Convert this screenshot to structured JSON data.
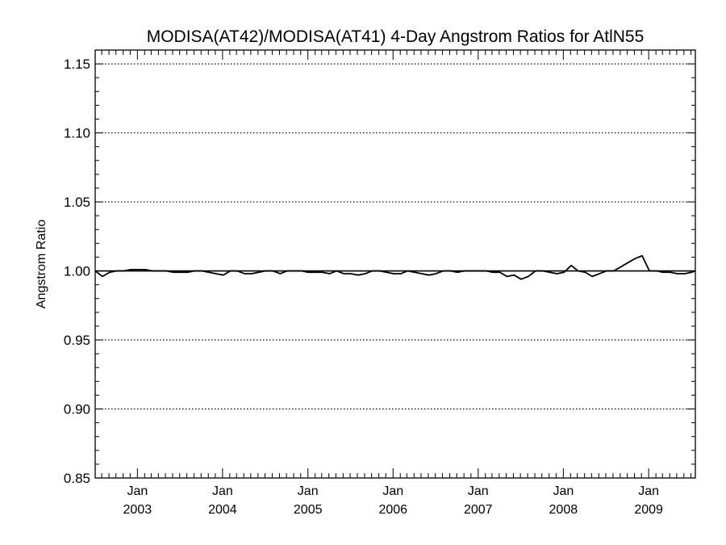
{
  "chart_data": {
    "type": "line",
    "title": "MODISA(AT42)/MODISA(AT41) 4-Day Angstrom Ratios for AtlN55",
    "xlabel": "",
    "ylabel": "Angstrom Ratio",
    "xlim": [
      "2002-07-04",
      "2009-07-20"
    ],
    "ylim": [
      0.85,
      1.16
    ],
    "y_ticks": [
      0.85,
      0.9,
      0.95,
      1.0,
      1.05,
      1.1,
      1.15
    ],
    "y_tick_labels": [
      "0.85",
      "0.90",
      "0.95",
      "1.00",
      "1.05",
      "1.10",
      "1.15"
    ],
    "x_ticks": [
      {
        "date": "2003-01-01",
        "month": "Jan",
        "year": "2003"
      },
      {
        "date": "2004-01-01",
        "month": "Jan",
        "year": "2004"
      },
      {
        "date": "2005-01-01",
        "month": "Jan",
        "year": "2005"
      },
      {
        "date": "2006-01-01",
        "month": "Jan",
        "year": "2006"
      },
      {
        "date": "2007-01-01",
        "month": "Jan",
        "year": "2007"
      },
      {
        "date": "2008-01-01",
        "month": "Jan",
        "year": "2008"
      },
      {
        "date": "2009-01-01",
        "month": "Jan",
        "year": "2009"
      }
    ],
    "horizontal_gridlines": "dotted",
    "reference_line": 1.0,
    "series": [
      {
        "x": [
          "2002-07-04",
          "2002-08-04",
          "2002-09-04",
          "2002-10-04",
          "2002-11-04",
          "2002-12-04",
          "2003-01-04",
          "2003-02-04",
          "2003-03-04",
          "2003-04-04",
          "2003-05-04",
          "2003-06-04",
          "2003-07-04",
          "2003-08-04",
          "2003-09-04",
          "2003-10-04",
          "2003-11-04",
          "2003-12-04",
          "2004-01-04",
          "2004-02-04",
          "2004-03-04",
          "2004-04-04",
          "2004-05-04",
          "2004-06-04",
          "2004-07-04",
          "2004-08-04",
          "2004-09-04",
          "2004-10-04",
          "2004-11-04",
          "2004-12-04",
          "2005-01-04",
          "2005-02-04",
          "2005-03-04",
          "2005-04-04",
          "2005-05-04",
          "2005-06-04",
          "2005-07-04",
          "2005-08-04",
          "2005-09-04",
          "2005-10-04",
          "2005-11-04",
          "2005-12-04",
          "2006-01-04",
          "2006-02-04",
          "2006-03-04",
          "2006-04-04",
          "2006-05-04",
          "2006-06-04",
          "2006-07-04",
          "2006-08-04",
          "2006-09-04",
          "2006-10-04",
          "2006-11-04",
          "2006-12-04",
          "2007-01-04",
          "2007-02-04",
          "2007-03-04",
          "2007-04-04",
          "2007-05-04",
          "2007-06-04",
          "2007-07-04",
          "2007-08-04",
          "2007-09-04",
          "2007-10-04",
          "2007-11-04",
          "2007-12-04",
          "2008-01-04",
          "2008-02-04",
          "2008-03-04",
          "2008-04-04",
          "2008-05-04",
          "2008-06-04",
          "2008-07-04",
          "2008-08-04",
          "2008-09-04",
          "2008-10-04",
          "2008-11-04",
          "2008-12-04",
          "2009-01-04",
          "2009-02-04",
          "2009-03-04",
          "2009-04-04",
          "2009-05-04",
          "2009-06-04",
          "2009-07-04",
          "2009-07-20"
        ],
        "y": [
          1.0,
          0.996,
          0.999,
          1.0,
          1.0,
          1.001,
          1.001,
          1.001,
          1.0,
          1.0,
          1.0,
          0.999,
          0.999,
          0.999,
          1.0,
          1.0,
          0.999,
          0.998,
          0.997,
          1.0,
          1.0,
          0.998,
          0.998,
          0.999,
          1.0,
          1.0,
          0.998,
          1.0,
          1.0,
          1.0,
          0.999,
          0.999,
          0.999,
          0.998,
          1.0,
          0.998,
          0.998,
          0.997,
          0.998,
          1.0,
          1.0,
          0.999,
          0.998,
          0.998,
          1.0,
          0.999,
          0.998,
          0.997,
          0.998,
          1.0,
          1.0,
          0.999,
          1.0,
          1.0,
          1.0,
          1.0,
          0.999,
          0.999,
          0.996,
          0.997,
          0.994,
          0.996,
          1.0,
          1.0,
          0.999,
          0.998,
          0.999,
          1.004,
          1.0,
          0.999,
          0.996,
          0.998,
          1.0,
          1.0,
          1.003,
          1.006,
          1.009,
          1.011,
          1.0,
          1.0,
          0.999,
          0.999,
          0.998,
          0.998,
          0.999,
          1.0
        ]
      }
    ]
  }
}
